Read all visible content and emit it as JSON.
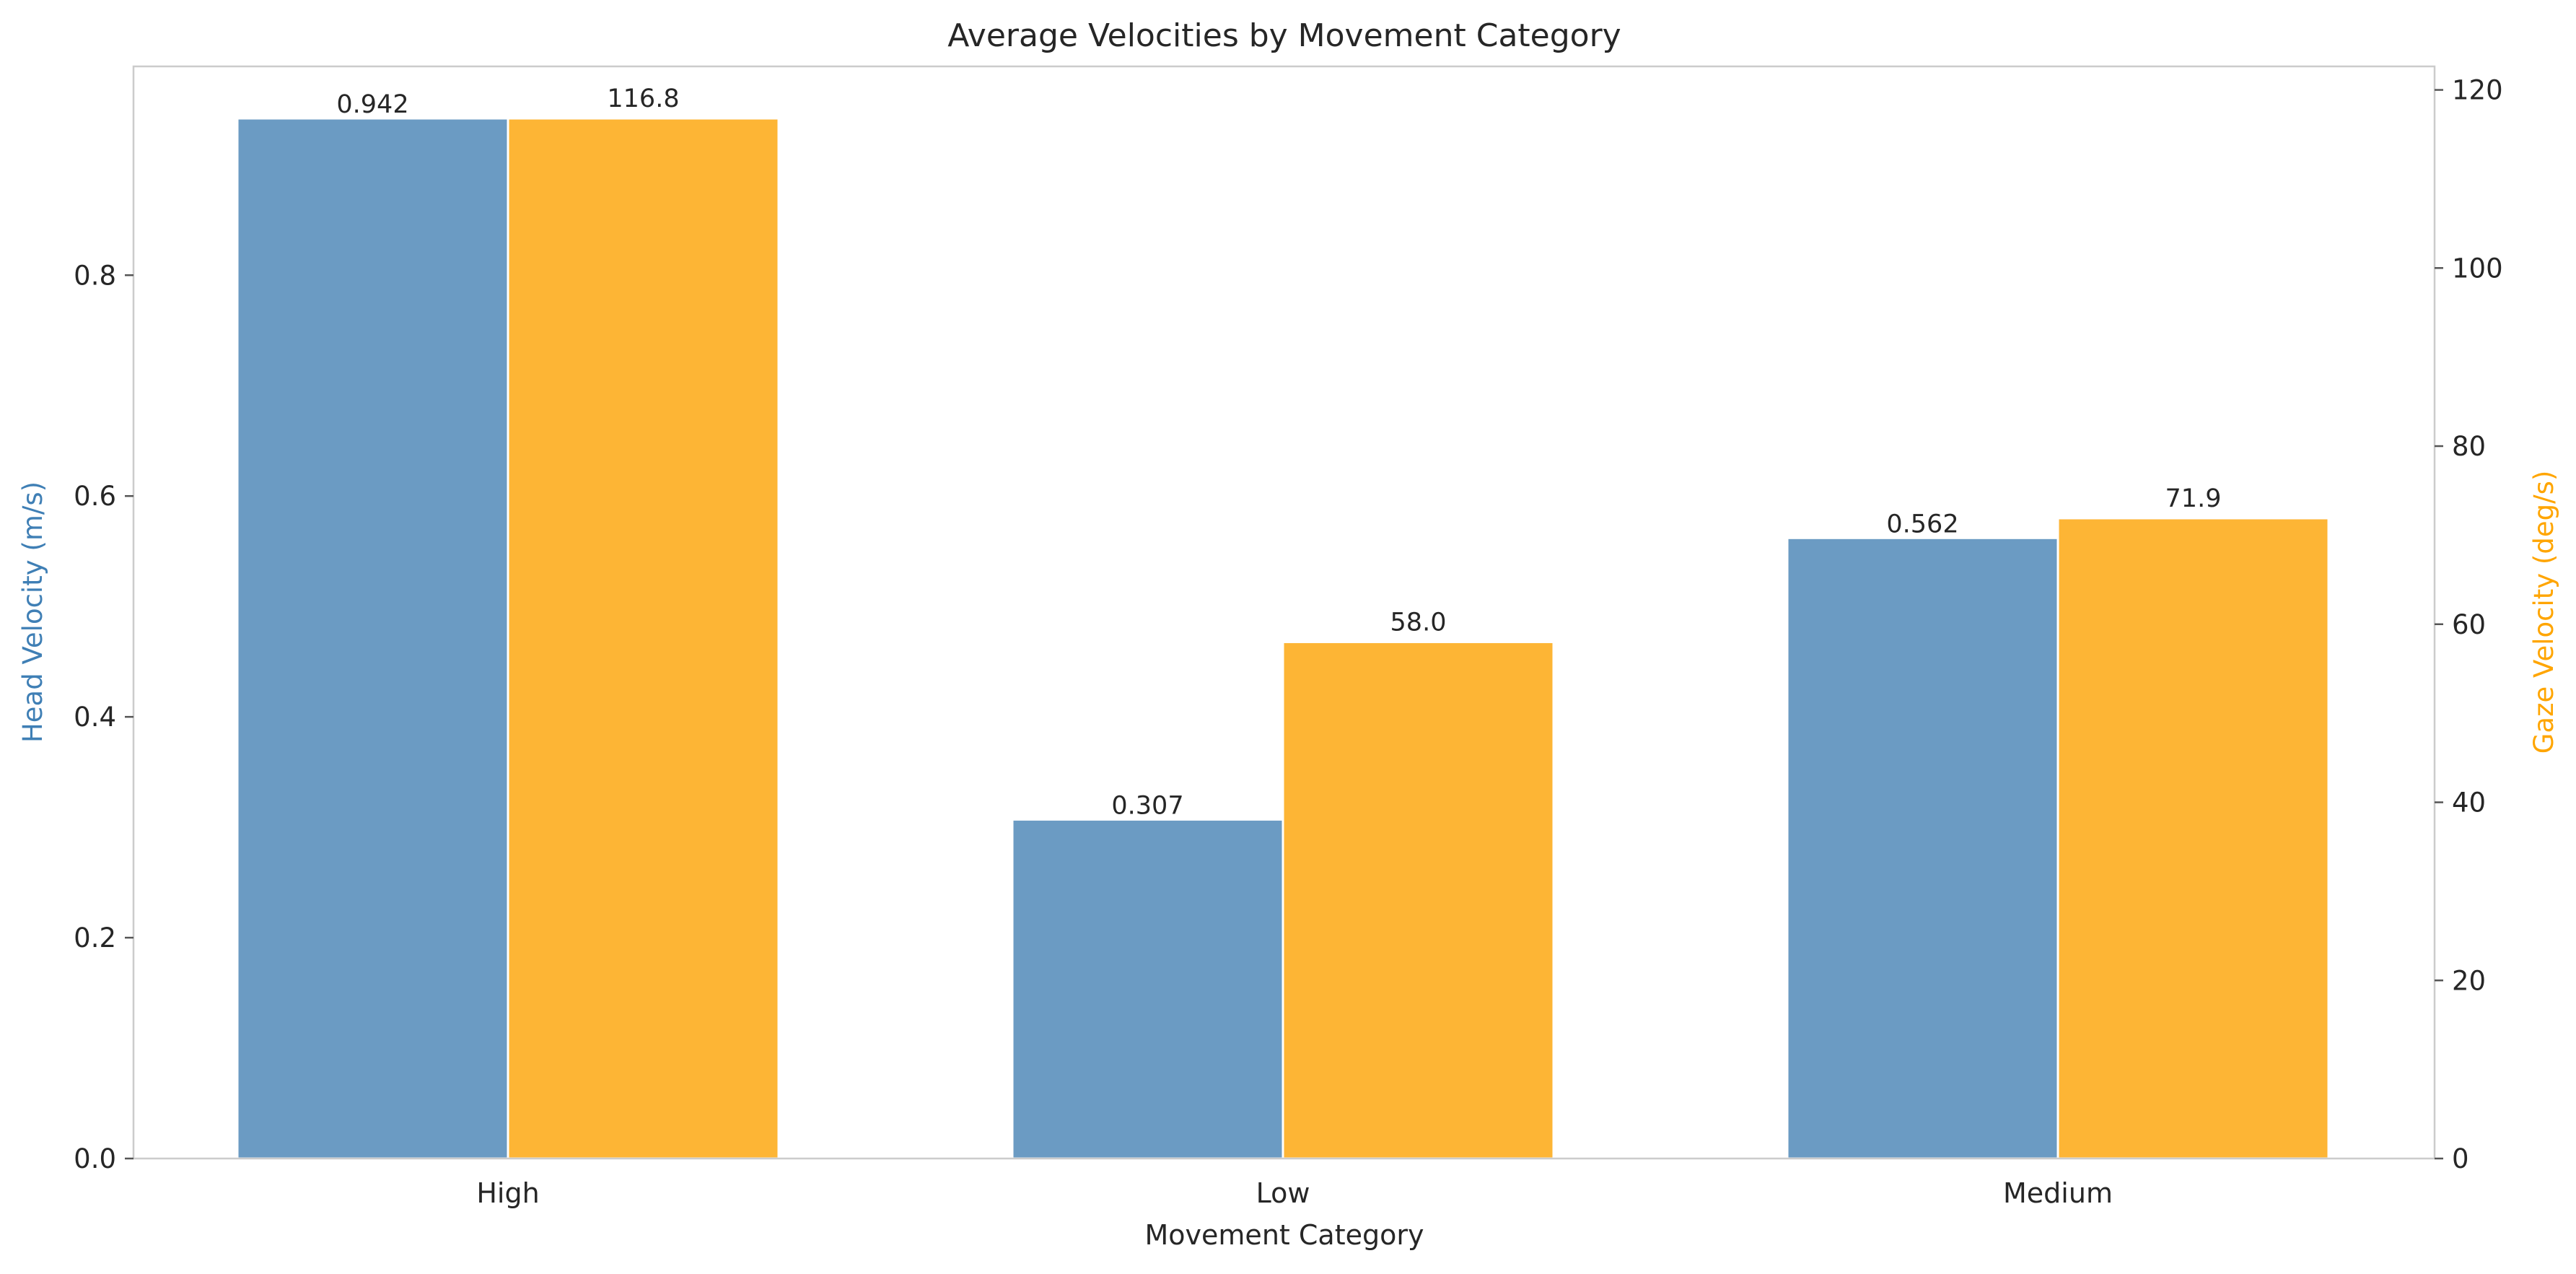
{
  "chart_data": {
    "type": "bar",
    "title": "Average Velocities by Movement Category",
    "xlabel": "Movement Category",
    "categories": [
      "High",
      "Low",
      "Medium"
    ],
    "series": [
      {
        "name": "Head Velocity (m/s)",
        "axis": "left",
        "color": "#6b9bc3",
        "values": [
          0.942,
          0.307,
          0.562
        ],
        "labels": [
          "0.942",
          "0.307",
          "0.562"
        ]
      },
      {
        "name": "Gaze Velocity (deg/s)",
        "axis": "right",
        "color": "#fdb535",
        "values": [
          116.8,
          58.0,
          71.9
        ],
        "labels": [
          "116.8",
          "58.0",
          "71.9"
        ]
      }
    ],
    "y_left": {
      "label": "Head Velocity (m/s)",
      "label_color": "#3f7fb5",
      "ylim": [
        0,
        0.9891
      ],
      "ticks": [
        0.0,
        0.2,
        0.4,
        0.6,
        0.8
      ],
      "tick_labels": [
        "0.0",
        "0.2",
        "0.4",
        "0.6",
        "0.8"
      ]
    },
    "y_right": {
      "label": "Gaze Velocity (deg/s)",
      "label_color": "#ffa500",
      "ylim": [
        0,
        122.64
      ],
      "ticks": [
        0,
        20,
        40,
        60,
        80,
        100,
        120
      ],
      "tick_labels": [
        "0",
        "20",
        "40",
        "60",
        "80",
        "100",
        "120"
      ]
    },
    "grid": false
  }
}
